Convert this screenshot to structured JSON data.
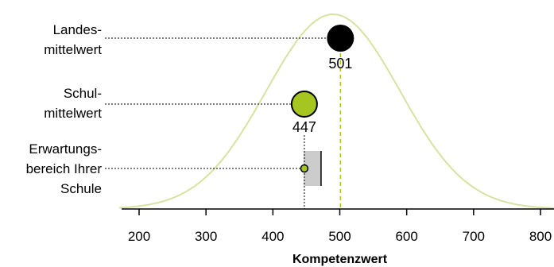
{
  "chart_data": {
    "type": "scatter",
    "xlabel": "Kompetenzwert",
    "xlim": [
      180,
      810
    ],
    "ticks": [
      200,
      300,
      400,
      500,
      600,
      700,
      800
    ],
    "tick_labels": [
      "200",
      "300",
      "400",
      "500",
      "600",
      "700",
      "800"
    ],
    "distribution": {
      "mean": 490,
      "sd": 100
    },
    "reference_line_x": 501,
    "points": [
      {
        "label_lines": [
          "Landes-",
          "mittelwert"
        ],
        "x": 501,
        "value_label": "501",
        "color": "#000000",
        "size": "large"
      },
      {
        "label_lines": [
          "Schul-",
          "mittelwert"
        ],
        "x": 447,
        "value_label": "447",
        "color": "#a6c521",
        "size": "large"
      }
    ],
    "expected_range": {
      "label_lines": [
        "Erwartungs-",
        "bereich Ihrer",
        "Schule"
      ],
      "from": 446,
      "to": 472,
      "expected": 447,
      "color": "#cccccc"
    },
    "colors": {
      "curve": "#d6e3a0",
      "reference_line": "#a6c521",
      "school": "#a6c521",
      "state": "#000000"
    }
  }
}
